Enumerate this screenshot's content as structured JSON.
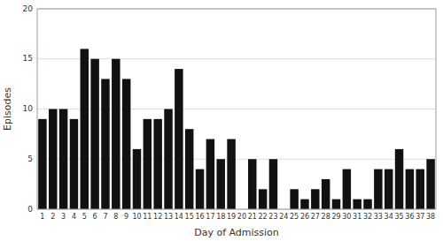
{
  "chart_data": {
    "type": "bar",
    "categories": [
      "1",
      "2",
      "3",
      "4",
      "5",
      "6",
      "7",
      "8",
      "9",
      "10",
      "11",
      "12",
      "13",
      "14",
      "15",
      "16",
      "17",
      "18",
      "19",
      "20",
      "21",
      "22",
      "23",
      "24",
      "25",
      "26",
      "27",
      "28",
      "29",
      "30",
      "31",
      "32",
      "33",
      "34",
      "35",
      "36",
      "37",
      "38"
    ],
    "values": [
      9,
      10,
      10,
      9,
      16,
      15,
      13,
      15,
      13,
      6,
      9,
      9,
      10,
      14,
      8,
      4,
      7,
      5,
      7,
      0,
      5,
      2,
      5,
      0,
      2,
      1,
      2,
      3,
      1,
      4,
      1,
      1,
      4,
      4,
      6,
      4,
      4,
      5
    ],
    "color": "#111111",
    "xlabel": "Day of Admission",
    "ylabel": "Episodes",
    "ylim": [
      0,
      20
    ],
    "yticks": [
      0,
      5,
      10,
      15,
      20
    ],
    "grid": true
  }
}
